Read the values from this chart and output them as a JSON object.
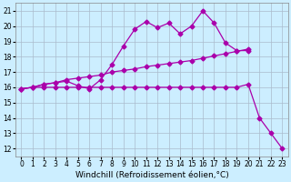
{
  "xlabel": "Windchill (Refroidissement éolien,°C)",
  "background_color": "#cceeff",
  "grid_color": "#aabbcc",
  "line_color": "#aa00aa",
  "xlim": [
    -0.5,
    23.5
  ],
  "ylim": [
    11.5,
    21.5
  ],
  "xticks": [
    0,
    1,
    2,
    3,
    4,
    5,
    6,
    7,
    8,
    9,
    10,
    11,
    12,
    13,
    14,
    15,
    16,
    17,
    18,
    19,
    20,
    21,
    22,
    23
  ],
  "yticks": [
    12,
    13,
    14,
    15,
    16,
    17,
    18,
    19,
    20,
    21
  ],
  "line1_x": [
    0,
    1,
    2,
    3,
    4,
    5,
    6,
    7,
    8,
    9,
    10,
    11,
    12,
    13,
    14,
    15,
    16,
    17,
    18,
    19,
    20
  ],
  "line1_y": [
    15.9,
    16.0,
    16.2,
    16.3,
    16.4,
    16.1,
    15.9,
    16.5,
    17.5,
    18.7,
    19.8,
    20.3,
    19.9,
    20.2,
    19.5,
    20.0,
    21.0,
    20.2,
    18.9,
    18.4,
    18.4
  ],
  "line2_x": [
    0,
    1,
    2,
    3,
    4,
    5,
    6,
    7,
    8,
    9,
    10,
    11,
    12,
    13,
    14,
    15,
    16,
    17,
    18,
    19,
    20
  ],
  "line2_y": [
    15.9,
    16.0,
    16.2,
    16.3,
    16.5,
    16.6,
    16.7,
    16.8,
    17.0,
    17.1,
    17.2,
    17.35,
    17.45,
    17.55,
    17.65,
    17.75,
    17.9,
    18.05,
    18.2,
    18.35,
    18.5
  ],
  "line3_x": [
    0,
    1,
    2,
    3,
    4,
    5,
    6,
    7,
    8,
    9,
    10,
    11,
    12,
    13,
    14,
    15,
    16,
    17,
    18,
    19,
    20,
    21,
    22,
    23
  ],
  "line3_y": [
    15.9,
    16.0,
    16.0,
    16.0,
    16.0,
    16.0,
    16.0,
    16.0,
    16.0,
    16.0,
    16.0,
    16.0,
    16.0,
    16.0,
    16.0,
    16.0,
    16.0,
    16.0,
    16.0,
    16.0,
    16.2,
    14.0,
    13.0,
    12.0
  ],
  "fontsize_label": 6.5,
  "fontsize_tick": 5.5,
  "marker": "D",
  "markersize": 2.5,
  "linewidth": 0.9
}
